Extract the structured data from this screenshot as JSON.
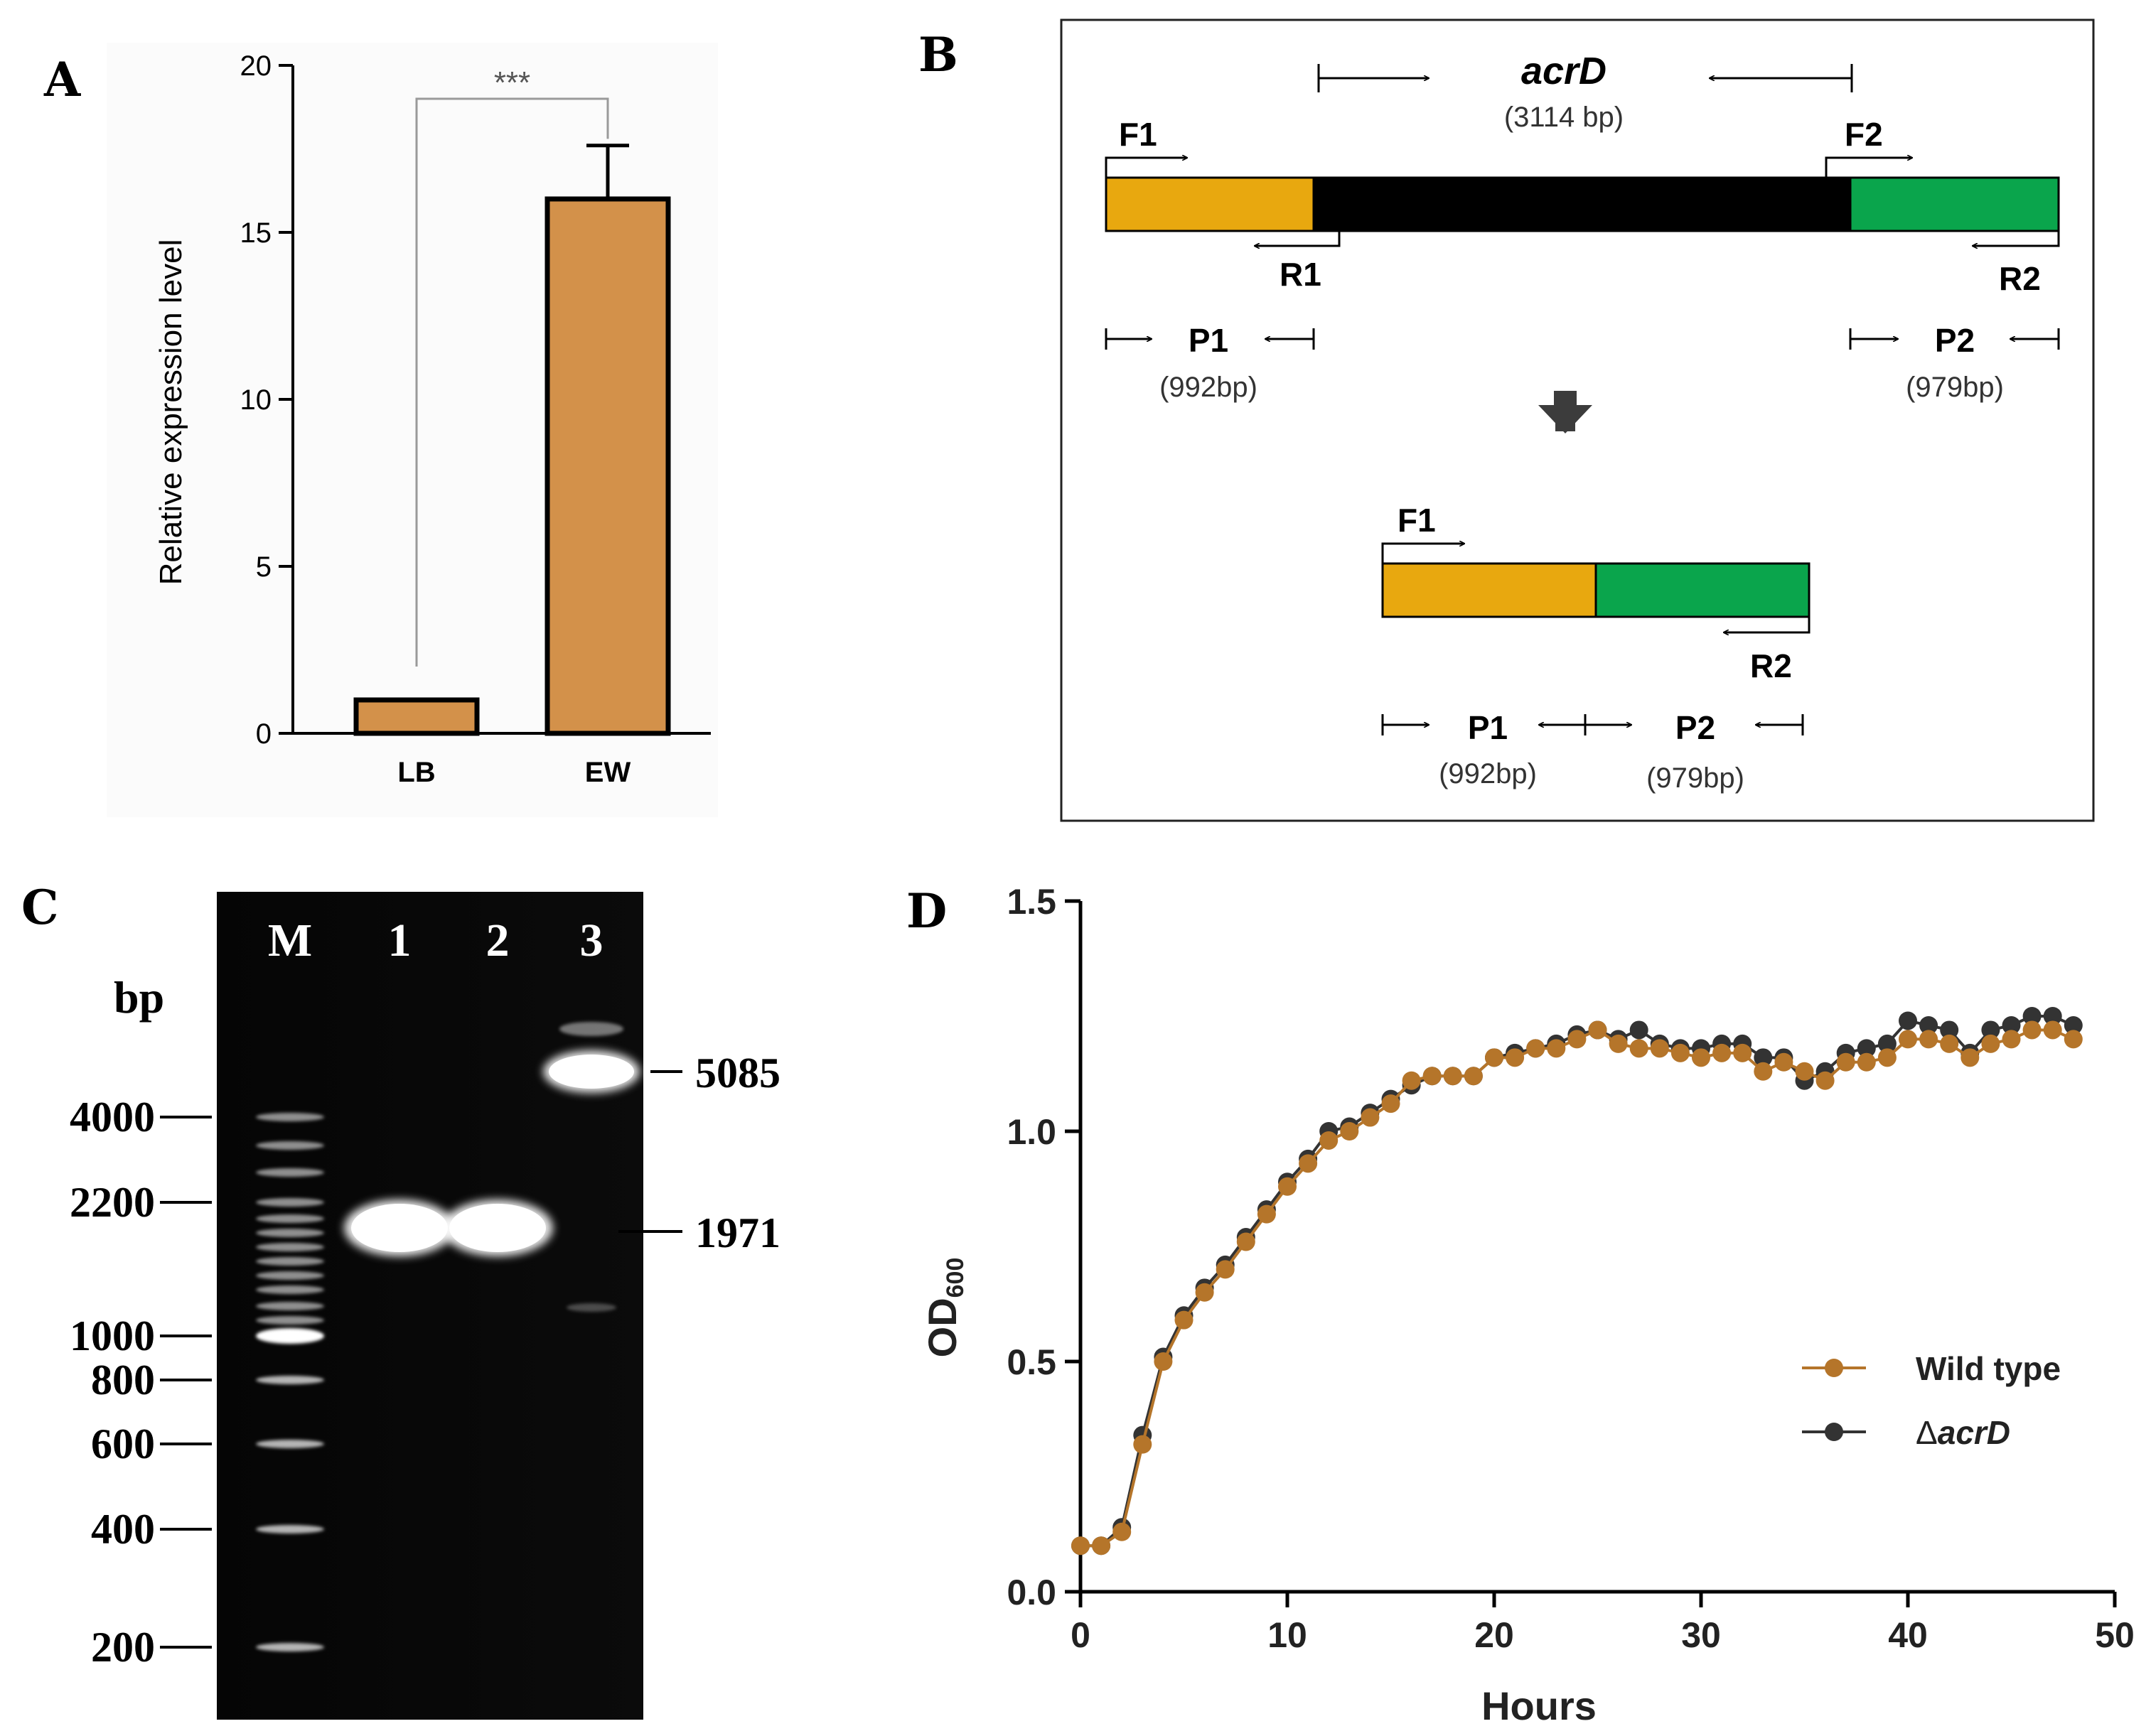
{
  "panel_labels": [
    "A",
    "B",
    "C",
    "D"
  ],
  "chart_data": [
    {
      "panel": "A",
      "type": "bar",
      "categories": [
        "LB",
        "EW"
      ],
      "values": [
        1.0,
        16.0
      ],
      "errors": [
        0,
        1.6
      ],
      "ylabel": "Relative expression level",
      "ylim": [
        0,
        20
      ],
      "yticks": [
        "0",
        "5",
        "10",
        "15",
        "20"
      ],
      "significance": "***",
      "bar_color": "#d3914a",
      "grid": false
    },
    {
      "panel": "D",
      "type": "line",
      "xlabel": "Hours",
      "ylabel_main": "OD",
      "ylabel_sub": "600",
      "xlim": [
        0,
        50
      ],
      "ylim": [
        0,
        1.5
      ],
      "xticks": [
        "0",
        "10",
        "20",
        "30",
        "40",
        "50"
      ],
      "yticks": [
        "0.0",
        "0.5",
        "1.0",
        "1.5"
      ],
      "legend_position": "right",
      "grid": false,
      "x": [
        0,
        1,
        2,
        3,
        4,
        5,
        6,
        7,
        8,
        9,
        10,
        11,
        12,
        13,
        14,
        15,
        16,
        17,
        18,
        19,
        20,
        21,
        22,
        23,
        24,
        25,
        26,
        27,
        28,
        29,
        30,
        31,
        32,
        33,
        34,
        35,
        36,
        37,
        38,
        39,
        40,
        41,
        42,
        43,
        44,
        45,
        46,
        47,
        48
      ],
      "series": [
        {
          "name_prefix": "Δ",
          "name_italic": "acrD",
          "color": "#333333",
          "values": [
            0.1,
            0.1,
            0.14,
            0.34,
            0.51,
            0.6,
            0.66,
            0.71,
            0.77,
            0.83,
            0.89,
            0.94,
            1.0,
            1.01,
            1.04,
            1.07,
            1.1,
            1.12,
            1.12,
            1.12,
            1.16,
            1.17,
            1.18,
            1.19,
            1.21,
            1.22,
            1.2,
            1.22,
            1.19,
            1.18,
            1.18,
            1.19,
            1.19,
            1.16,
            1.16,
            1.11,
            1.13,
            1.17,
            1.18,
            1.19,
            1.24,
            1.23,
            1.22,
            1.17,
            1.22,
            1.23,
            1.25,
            1.25,
            1.23
          ]
        },
        {
          "name": "Wild type",
          "color": "#b5752a",
          "values": [
            0.1,
            0.1,
            0.13,
            0.32,
            0.5,
            0.59,
            0.65,
            0.7,
            0.76,
            0.82,
            0.88,
            0.93,
            0.98,
            1.0,
            1.03,
            1.06,
            1.11,
            1.12,
            1.12,
            1.12,
            1.16,
            1.16,
            1.18,
            1.18,
            1.2,
            1.22,
            1.19,
            1.18,
            1.18,
            1.17,
            1.16,
            1.17,
            1.17,
            1.13,
            1.15,
            1.13,
            1.11,
            1.15,
            1.15,
            1.16,
            1.2,
            1.2,
            1.19,
            1.16,
            1.19,
            1.2,
            1.22,
            1.22,
            1.2
          ]
        }
      ]
    }
  ],
  "diagram_b": {
    "gene_name": "acrD",
    "gene_size": "(3114 bp)",
    "primers": {
      "F1": "F1",
      "F2": "F2",
      "R1": "R1",
      "R2": "R2"
    },
    "fragments": {
      "P1": "P1",
      "P1_size": "(992bp)",
      "P2": "P2",
      "P2_size": "(979bp)"
    },
    "colors": {
      "upstream": "#e8a80f",
      "gene": "#000000",
      "downstream": "#0aa54c"
    }
  },
  "gel_c": {
    "axis_unit": "bp",
    "lanes": [
      "M",
      "1",
      "2",
      "3"
    ],
    "marker_labels": [
      "4000",
      "2200",
      "1000",
      "800",
      "600",
      "400",
      "200"
    ],
    "band_labels": [
      "5085",
      "1971"
    ]
  }
}
